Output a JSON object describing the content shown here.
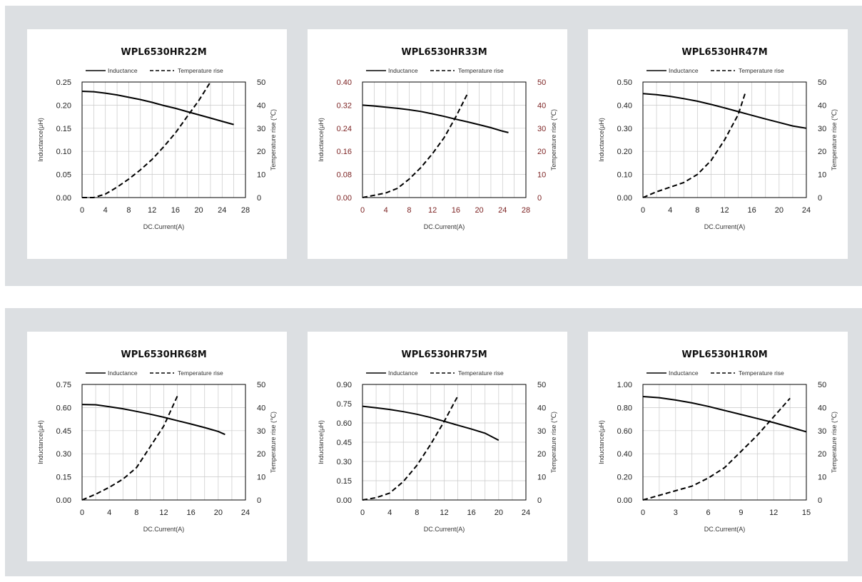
{
  "chart_data": [
    {
      "type": "line",
      "title": "WPL6530HR22M",
      "xlabel": "DC.Current(A)",
      "ylabel": "Inductance(μH)",
      "y2label": "Temperature rise (℃)",
      "xlim": [
        0,
        28
      ],
      "xticks": [
        0,
        4,
        8,
        12,
        16,
        20,
        24,
        28
      ],
      "ylim": [
        0,
        0.25
      ],
      "yticks": [
        "0.00",
        "0.05",
        "0.10",
        "0.15",
        "0.20",
        "0.25"
      ],
      "y2lim": [
        0,
        50
      ],
      "y2ticks": [
        "0",
        "10",
        "20",
        "30",
        "40",
        "50"
      ],
      "legend": [
        "Inductance",
        "Temperature rise"
      ],
      "series": [
        {
          "name": "Inductance",
          "axis": "left",
          "style": "solid",
          "x": [
            0,
            2,
            4,
            6,
            8,
            10,
            12,
            14,
            16,
            18,
            20,
            22,
            24,
            26
          ],
          "y": [
            0.23,
            0.229,
            0.226,
            0.222,
            0.217,
            0.212,
            0.206,
            0.199,
            0.193,
            0.186,
            0.179,
            0.172,
            0.165,
            0.158
          ]
        },
        {
          "name": "Temperature rise",
          "axis": "right",
          "style": "dashed",
          "x": [
            0,
            2,
            4,
            6,
            8,
            10,
            12,
            14,
            16,
            18,
            20,
            22
          ],
          "y": [
            0,
            0,
            1.5,
            4.5,
            8,
            12,
            16.5,
            22,
            28,
            35,
            42,
            50
          ]
        }
      ]
    },
    {
      "type": "line",
      "title": "WPL6530HR33M",
      "xlabel": "DC.Current(A)",
      "ylabel": "Inductance(μH)",
      "y2label": "Temperature rise (℃)",
      "tick_color": "#7a1f1f",
      "xlim": [
        0,
        28
      ],
      "xticks": [
        0,
        4,
        8,
        12,
        16,
        20,
        24,
        28
      ],
      "ylim": [
        0,
        0.4
      ],
      "yticks": [
        "0.00",
        "0.08",
        "0.16",
        "0.24",
        "0.32",
        "0.40"
      ],
      "y2lim": [
        0,
        50
      ],
      "y2ticks": [
        "0",
        "10",
        "20",
        "30",
        "40",
        "50"
      ],
      "legend": [
        "Inductance",
        "Temperature rise"
      ],
      "series": [
        {
          "name": "Inductance",
          "axis": "left",
          "style": "solid",
          "x": [
            0,
            2,
            4,
            6,
            8,
            10,
            12,
            14,
            16,
            18,
            20,
            22,
            24,
            25
          ],
          "y": [
            0.32,
            0.317,
            0.313,
            0.309,
            0.304,
            0.298,
            0.29,
            0.281,
            0.271,
            0.262,
            0.252,
            0.242,
            0.23,
            0.225
          ]
        },
        {
          "name": "Temperature rise",
          "axis": "right",
          "style": "dashed",
          "x": [
            0,
            2,
            4,
            6,
            8,
            10,
            12,
            14,
            16,
            18
          ],
          "y": [
            0,
            1,
            2,
            4,
            8,
            13,
            19,
            26,
            35,
            45
          ]
        }
      ]
    },
    {
      "type": "line",
      "title": "WPL6530HR47M",
      "xlabel": "DC.Current(A)",
      "ylabel": "Inductance(μH)",
      "y2label": "Temperature rise (℃)",
      "xlim": [
        0,
        24
      ],
      "xticks": [
        0,
        4,
        8,
        12,
        16,
        20,
        24
      ],
      "ylim": [
        0,
        0.5
      ],
      "yticks": [
        "0.00",
        "0.10",
        "0.20",
        "0.30",
        "0.40",
        "0.50"
      ],
      "y2lim": [
        0,
        50
      ],
      "y2ticks": [
        "0",
        "10",
        "20",
        "30",
        "40",
        "50"
      ],
      "legend": [
        "Inductance",
        "Temperature rise"
      ],
      "series": [
        {
          "name": "Inductance",
          "axis": "left",
          "style": "solid",
          "x": [
            0,
            2,
            4,
            6,
            8,
            10,
            12,
            14,
            16,
            18,
            20,
            22,
            24
          ],
          "y": [
            0.45,
            0.445,
            0.438,
            0.428,
            0.417,
            0.403,
            0.388,
            0.372,
            0.356,
            0.34,
            0.325,
            0.31,
            0.3
          ]
        },
        {
          "name": "Temperature rise",
          "axis": "right",
          "style": "dashed",
          "x": [
            0,
            2,
            4,
            6,
            8,
            10,
            12,
            14,
            15
          ],
          "y": [
            0,
            2.5,
            4.5,
            6.5,
            10,
            16,
            25,
            36,
            45
          ]
        }
      ]
    },
    {
      "type": "line",
      "title": "WPL6530HR68M",
      "xlabel": "DC.Current(A)",
      "ylabel": "Inductance(μH)",
      "y2label": "Temperature rise (℃)",
      "xlim": [
        0,
        24
      ],
      "xticks": [
        0,
        4,
        8,
        12,
        16,
        20,
        24
      ],
      "ylim": [
        0,
        0.75
      ],
      "yticks": [
        "0.00",
        "0.15",
        "0.30",
        "0.45",
        "0.60",
        "0.75"
      ],
      "y2lim": [
        0,
        50
      ],
      "y2ticks": [
        "0",
        "10",
        "20",
        "30",
        "40",
        "50"
      ],
      "legend": [
        "Inductance",
        "Temperature rise"
      ],
      "series": [
        {
          "name": "Inductance",
          "axis": "left",
          "style": "solid",
          "x": [
            0,
            2,
            4,
            6,
            8,
            10,
            12,
            14,
            16,
            18,
            20,
            21
          ],
          "y": [
            0.62,
            0.618,
            0.605,
            0.592,
            0.575,
            0.557,
            0.537,
            0.515,
            0.493,
            0.47,
            0.445,
            0.425
          ]
        },
        {
          "name": "Temperature rise",
          "axis": "right",
          "style": "dashed",
          "x": [
            0,
            2,
            4,
            6,
            8,
            10,
            12,
            14
          ],
          "y": [
            0,
            2.5,
            5.5,
            9,
            14,
            23,
            32,
            45
          ]
        }
      ]
    },
    {
      "type": "line",
      "title": "WPL6530HR75M",
      "xlabel": "DC.Current(A)",
      "ylabel": "Inductance(μH)",
      "y2label": "Temperature rise (℃)",
      "xlim": [
        0,
        24
      ],
      "xticks": [
        0,
        4,
        8,
        12,
        16,
        20,
        24
      ],
      "ylim": [
        0,
        0.9
      ],
      "yticks": [
        "0.00",
        "0.15",
        "0.30",
        "0.45",
        "0.60",
        "0.75",
        "0.90"
      ],
      "y2lim": [
        0,
        50
      ],
      "y2ticks": [
        "0",
        "10",
        "20",
        "30",
        "40",
        "50"
      ],
      "legend": [
        "Inductance",
        "Temperature rise"
      ],
      "series": [
        {
          "name": "Inductance",
          "axis": "left",
          "style": "solid",
          "x": [
            0,
            2,
            4,
            6,
            8,
            10,
            12,
            14,
            16,
            18,
            20
          ],
          "y": [
            0.73,
            0.718,
            0.705,
            0.688,
            0.668,
            0.643,
            0.613,
            0.582,
            0.552,
            0.52,
            0.465
          ]
        },
        {
          "name": "Temperature rise",
          "axis": "right",
          "style": "dashed",
          "x": [
            0,
            2,
            4,
            6,
            8,
            10,
            12,
            14
          ],
          "y": [
            0,
            1,
            3,
            8,
            15,
            24,
            34,
            45
          ]
        }
      ]
    },
    {
      "type": "line",
      "title": "WPL6530H1R0M",
      "xlabel": "DC.Current(A)",
      "ylabel": "Inductance(μH)",
      "y2label": "Temperature rise (℃)",
      "xlim": [
        0,
        15
      ],
      "xticks": [
        0,
        3,
        6,
        9,
        12,
        15
      ],
      "ylim": [
        0,
        1.0
      ],
      "yticks": [
        "0.00",
        "0.20",
        "0.40",
        "0.60",
        "0.80",
        "1.00"
      ],
      "y2lim": [
        0,
        50
      ],
      "y2ticks": [
        "0",
        "10",
        "20",
        "30",
        "40",
        "50"
      ],
      "legend": [
        "Inductance",
        "Temperature rise"
      ],
      "series": [
        {
          "name": "Inductance",
          "axis": "left",
          "style": "solid",
          "x": [
            0,
            1.5,
            3,
            4.5,
            6,
            7.5,
            9,
            10.5,
            12,
            13.5,
            15
          ],
          "y": [
            0.895,
            0.885,
            0.865,
            0.84,
            0.81,
            0.775,
            0.74,
            0.705,
            0.67,
            0.63,
            0.59
          ]
        },
        {
          "name": "Temperature rise",
          "axis": "right",
          "style": "dashed",
          "x": [
            0,
            1.5,
            3,
            4.5,
            6,
            7.5,
            9,
            10.5,
            12,
            13.5
          ],
          "y": [
            0,
            2,
            4,
            6,
            9.5,
            14,
            21,
            28,
            36,
            44
          ]
        }
      ]
    }
  ]
}
